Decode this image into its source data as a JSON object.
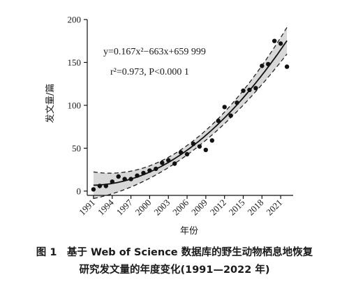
{
  "chart_data": {
    "type": "scatter",
    "xlabel": "年份",
    "ylabel": "发文量/篇",
    "xlim": [
      1990,
      2023
    ],
    "ylim": [
      -5,
      200
    ],
    "x_ticks": [
      "1991",
      "1994",
      "1997",
      "2000",
      "2003",
      "2006",
      "2009",
      "2012",
      "2015",
      "2018",
      "2021"
    ],
    "y_ticks": [
      "0",
      "50",
      "100",
      "150",
      "200"
    ],
    "x": [
      1991,
      1992,
      1993,
      1994,
      1995,
      1996,
      1997,
      1998,
      1999,
      2000,
      2001,
      2002,
      2003,
      2004,
      2005,
      2006,
      2007,
      2008,
      2009,
      2010,
      2011,
      2012,
      2013,
      2014,
      2015,
      2016,
      2017,
      2018,
      2019,
      2020,
      2021,
      2022
    ],
    "y": [
      2,
      6,
      6,
      11,
      17,
      14,
      14,
      18,
      21,
      24,
      26,
      33,
      36,
      32,
      45,
      43,
      55,
      52,
      48,
      59,
      82,
      98,
      88,
      103,
      117,
      118,
      120,
      146,
      148,
      175,
      172,
      145
    ],
    "fit_equation": "y=0.167x²−663x+659 999",
    "fit_stats": "r²=0.973, P<0.000 1",
    "fit_coefficients": [
      0.167,
      -663,
      659999
    ]
  },
  "caption_line1": "图 1　基于 Web of Science 数据库的野生动物栖息地恢复",
  "caption_line2": "研究发文量的年度变化(1991—2022 年)"
}
